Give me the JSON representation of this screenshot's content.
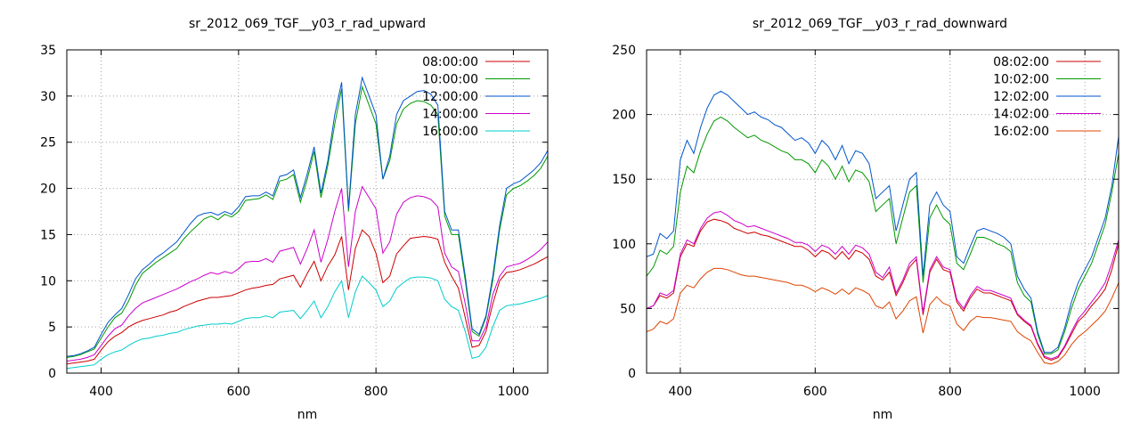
{
  "chart_data": [
    {
      "type": "line",
      "title": "sr_2012_069_TGF__y03_r_rad_upward",
      "xlabel": "nm",
      "ylabel": "",
      "xlim": [
        350,
        1050
      ],
      "ylim": [
        0,
        35
      ],
      "xticks": [
        400,
        600,
        800,
        1000
      ],
      "yticks": [
        0,
        5,
        10,
        15,
        20,
        25,
        30,
        35
      ],
      "grid": true,
      "legend_position": "top-right",
      "x": [
        350,
        360,
        370,
        380,
        390,
        400,
        410,
        420,
        430,
        440,
        450,
        460,
        470,
        480,
        490,
        500,
        510,
        520,
        530,
        540,
        550,
        560,
        570,
        580,
        590,
        600,
        610,
        620,
        630,
        640,
        650,
        660,
        670,
        680,
        690,
        700,
        710,
        720,
        730,
        740,
        750,
        760,
        770,
        780,
        790,
        800,
        810,
        820,
        830,
        840,
        850,
        860,
        870,
        880,
        890,
        900,
        910,
        920,
        930,
        940,
        950,
        960,
        970,
        980,
        990,
        1000,
        1010,
        1020,
        1030,
        1040,
        1050
      ],
      "series": [
        {
          "name": "08:00:00",
          "color": "#cc0000",
          "values": [
            1.0,
            1.1,
            1.2,
            1.3,
            1.5,
            2.5,
            3.4,
            4.0,
            4.4,
            5.0,
            5.4,
            5.7,
            5.9,
            6.1,
            6.3,
            6.6,
            6.8,
            7.2,
            7.5,
            7.8,
            8.0,
            8.2,
            8.2,
            8.3,
            8.4,
            8.7,
            9.0,
            9.2,
            9.3,
            9.5,
            9.6,
            10.2,
            10.4,
            10.6,
            9.3,
            10.8,
            12.1,
            10.0,
            11.6,
            12.8,
            14.8,
            9.0,
            13.5,
            15.5,
            14.8,
            13.0,
            9.8,
            10.5,
            12.9,
            13.8,
            14.6,
            14.7,
            14.8,
            14.7,
            14.5,
            12.0,
            10.5,
            9.2,
            6.0,
            2.8,
            3.0,
            4.5,
            7.5,
            10.0,
            10.9,
            11.0,
            11.2,
            11.5,
            11.8,
            12.2,
            12.6
          ]
        },
        {
          "name": "10:00:00",
          "color": "#009900",
          "values": [
            1.7,
            1.8,
            2.0,
            2.3,
            2.6,
            3.8,
            5.0,
            6.0,
            6.5,
            7.8,
            9.5,
            10.8,
            11.4,
            12.0,
            12.5,
            13.0,
            13.5,
            14.5,
            15.3,
            16.0,
            16.7,
            17.0,
            16.6,
            17.2,
            16.9,
            17.5,
            18.7,
            18.8,
            18.9,
            19.3,
            18.8,
            20.8,
            21.0,
            21.5,
            18.5,
            21.0,
            24.0,
            19.0,
            22.5,
            27.0,
            30.8,
            17.5,
            27.0,
            31.0,
            29.0,
            27.0,
            21.0,
            23.0,
            27.0,
            28.6,
            29.2,
            29.5,
            29.4,
            29.0,
            28.0,
            17.0,
            15.0,
            15.0,
            10.0,
            4.5,
            4.0,
            6.0,
            10.0,
            15.5,
            19.3,
            20.0,
            20.3,
            20.8,
            21.4,
            22.2,
            23.5
          ]
        },
        {
          "name": "12:00:00",
          "color": "#0055cc",
          "values": [
            1.8,
            1.9,
            2.1,
            2.4,
            2.8,
            4.2,
            5.5,
            6.3,
            7.0,
            8.5,
            10.2,
            11.2,
            11.8,
            12.5,
            13.0,
            13.6,
            14.2,
            15.2,
            16.2,
            17.0,
            17.3,
            17.4,
            17.1,
            17.5,
            17.2,
            18.0,
            19.1,
            19.2,
            19.2,
            19.6,
            19.2,
            21.3,
            21.5,
            22.0,
            19.0,
            21.6,
            24.5,
            19.5,
            23.0,
            28.0,
            31.5,
            17.8,
            28.0,
            32.0,
            30.0,
            28.0,
            21.0,
            23.5,
            28.0,
            29.5,
            30.0,
            30.5,
            30.6,
            30.2,
            29.0,
            17.5,
            15.5,
            15.5,
            10.5,
            4.8,
            4.2,
            6.2,
            10.5,
            16.0,
            20.0,
            20.5,
            20.8,
            21.4,
            22.0,
            22.8,
            24.1
          ]
        },
        {
          "name": "14:00:00",
          "color": "#cc00cc",
          "values": [
            1.3,
            1.4,
            1.5,
            1.7,
            2.0,
            3.0,
            4.0,
            4.8,
            5.2,
            6.2,
            7.0,
            7.6,
            7.9,
            8.2,
            8.5,
            8.8,
            9.1,
            9.5,
            9.9,
            10.2,
            10.6,
            10.9,
            10.7,
            11.0,
            10.8,
            11.3,
            12.0,
            12.1,
            12.1,
            12.4,
            12.0,
            13.2,
            13.4,
            13.6,
            11.8,
            13.5,
            15.5,
            12.0,
            14.5,
            17.5,
            20.0,
            11.5,
            17.5,
            20.2,
            19.0,
            17.8,
            13.0,
            14.2,
            17.2,
            18.5,
            19.0,
            19.2,
            19.1,
            18.8,
            18.0,
            13.0,
            11.5,
            11.0,
            7.5,
            3.5,
            3.5,
            5.0,
            8.5,
            10.5,
            11.5,
            11.7,
            11.9,
            12.3,
            12.8,
            13.4,
            14.2
          ]
        },
        {
          "name": "16:00:00",
          "color": "#00cccc",
          "values": [
            0.5,
            0.6,
            0.7,
            0.8,
            0.9,
            1.5,
            2.0,
            2.3,
            2.5,
            3.0,
            3.4,
            3.7,
            3.8,
            4.0,
            4.1,
            4.3,
            4.4,
            4.7,
            4.9,
            5.1,
            5.2,
            5.3,
            5.3,
            5.4,
            5.3,
            5.6,
            5.9,
            6.0,
            6.0,
            6.2,
            6.0,
            6.6,
            6.7,
            6.8,
            5.9,
            6.8,
            7.8,
            6.0,
            7.2,
            8.8,
            10.0,
            6.0,
            8.8,
            10.5,
            9.8,
            9.0,
            7.2,
            7.8,
            9.2,
            9.8,
            10.3,
            10.4,
            10.4,
            10.3,
            10.0,
            8.0,
            7.2,
            6.8,
            4.5,
            1.6,
            1.8,
            2.8,
            5.0,
            6.8,
            7.3,
            7.4,
            7.5,
            7.7,
            7.9,
            8.1,
            8.4
          ]
        }
      ]
    },
    {
      "type": "line",
      "title": "sr_2012_069_TGF__y03_r_rad_downward",
      "xlabel": "nm",
      "ylabel": "",
      "xlim": [
        350,
        1050
      ],
      "ylim": [
        0,
        250
      ],
      "xticks": [
        400,
        600,
        800,
        1000
      ],
      "yticks": [
        0,
        50,
        100,
        150,
        200,
        250
      ],
      "grid": true,
      "legend_position": "top-right",
      "x": [
        350,
        360,
        370,
        380,
        390,
        400,
        410,
        420,
        430,
        440,
        450,
        460,
        470,
        480,
        490,
        500,
        510,
        520,
        530,
        540,
        550,
        560,
        570,
        580,
        590,
        600,
        610,
        620,
        630,
        640,
        650,
        660,
        670,
        680,
        690,
        700,
        710,
        720,
        730,
        740,
        750,
        760,
        770,
        780,
        790,
        800,
        810,
        820,
        830,
        840,
        850,
        860,
        870,
        880,
        890,
        900,
        910,
        920,
        930,
        940,
        950,
        960,
        970,
        980,
        990,
        1000,
        1010,
        1020,
        1030,
        1040,
        1050
      ],
      "series": [
        {
          "name": "08:02:00",
          "color": "#cc0000",
          "values": [
            50,
            52,
            60,
            58,
            62,
            90,
            100,
            98,
            110,
            117,
            119,
            118,
            116,
            112,
            110,
            108,
            109,
            107,
            106,
            104,
            102,
            100,
            98,
            98,
            95,
            90,
            95,
            93,
            88,
            94,
            88,
            95,
            93,
            88,
            75,
            72,
            78,
            60,
            70,
            82,
            88,
            45,
            78,
            88,
            80,
            78,
            55,
            48,
            58,
            65,
            62,
            62,
            60,
            58,
            56,
            45,
            40,
            36,
            22,
            12,
            10,
            12,
            20,
            30,
            40,
            45,
            52,
            58,
            65,
            80,
            100
          ]
        },
        {
          "name": "10:02:00",
          "color": "#009900",
          "values": [
            75,
            82,
            95,
            92,
            98,
            140,
            160,
            155,
            172,
            185,
            195,
            198,
            195,
            190,
            186,
            182,
            184,
            180,
            178,
            175,
            172,
            170,
            165,
            165,
            162,
            155,
            165,
            160,
            150,
            160,
            148,
            157,
            155,
            148,
            125,
            130,
            135,
            100,
            120,
            140,
            145,
            70,
            120,
            130,
            120,
            115,
            85,
            80,
            92,
            105,
            105,
            103,
            100,
            98,
            94,
            70,
            60,
            55,
            30,
            15,
            15,
            18,
            32,
            50,
            65,
            75,
            85,
            100,
            115,
            140,
            170
          ]
        },
        {
          "name": "12:02:00",
          "color": "#0055cc",
          "values": [
            90,
            92,
            108,
            104,
            110,
            165,
            180,
            170,
            190,
            205,
            215,
            218,
            215,
            210,
            205,
            200,
            202,
            198,
            196,
            192,
            190,
            185,
            180,
            182,
            178,
            170,
            180,
            175,
            165,
            176,
            162,
            172,
            170,
            162,
            135,
            140,
            145,
            110,
            130,
            150,
            155,
            75,
            130,
            140,
            130,
            125,
            90,
            85,
            98,
            110,
            112,
            110,
            108,
            105,
            100,
            75,
            65,
            58,
            32,
            16,
            16,
            20,
            35,
            55,
            70,
            80,
            90,
            105,
            120,
            145,
            183
          ]
        },
        {
          "name": "14:02:00",
          "color": "#cc00cc",
          "values": [
            50,
            52,
            62,
            60,
            64,
            92,
            103,
            100,
            112,
            120,
            124,
            125,
            122,
            118,
            116,
            113,
            114,
            112,
            110,
            108,
            106,
            104,
            101,
            101,
            99,
            94,
            99,
            97,
            92,
            98,
            92,
            99,
            97,
            92,
            78,
            74,
            82,
            62,
            72,
            85,
            90,
            47,
            80,
            90,
            82,
            80,
            57,
            50,
            60,
            67,
            64,
            64,
            62,
            60,
            58,
            46,
            41,
            37,
            23,
            13,
            11,
            13,
            21,
            32,
            42,
            48,
            55,
            62,
            70,
            85,
            103
          ]
        },
        {
          "name": "16:02:00",
          "color": "#dd4400",
          "values": [
            32,
            34,
            40,
            38,
            42,
            62,
            68,
            66,
            73,
            78,
            81,
            81,
            80,
            78,
            76,
            75,
            75,
            74,
            73,
            72,
            71,
            70,
            68,
            68,
            66,
            63,
            66,
            64,
            61,
            65,
            61,
            66,
            64,
            61,
            52,
            50,
            55,
            42,
            48,
            56,
            59,
            31,
            53,
            59,
            54,
            52,
            38,
            33,
            40,
            44,
            43,
            43,
            42,
            41,
            40,
            32,
            28,
            25,
            16,
            8,
            7,
            9,
            14,
            22,
            28,
            32,
            37,
            42,
            48,
            58,
            70
          ]
        }
      ]
    }
  ]
}
